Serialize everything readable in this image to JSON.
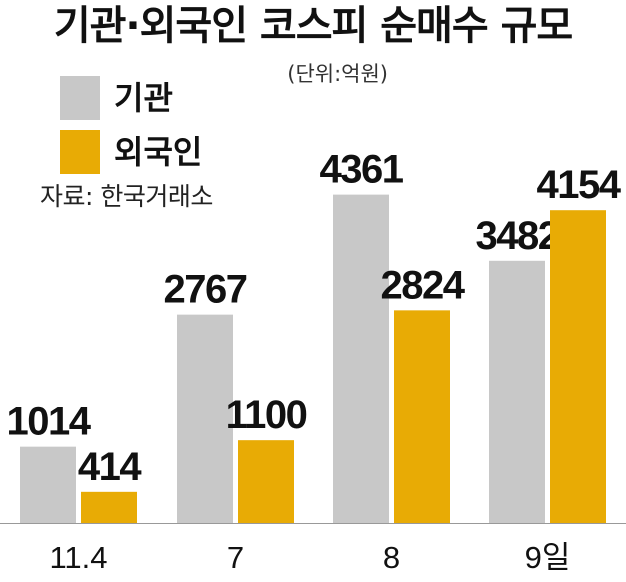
{
  "title": "기관·외국인 코스피 순매수 규모",
  "unit": "(단위:억원)",
  "source": "자료: 한국거래소",
  "colors": {
    "institution": "#c8c8c8",
    "foreign": "#e8ab05",
    "axis": "#999999"
  },
  "legend": [
    {
      "label": "기관",
      "color": "#c8c8c8"
    },
    {
      "label": "외국인",
      "color": "#e8ab05"
    }
  ],
  "chart_data": {
    "type": "bar",
    "title": "기관·외국인 코스피 순매수 규모",
    "categories": [
      "11.4",
      "7",
      "8",
      "9일"
    ],
    "series": [
      {
        "name": "기관",
        "values": [
          1014,
          2767,
          4361,
          3482
        ]
      },
      {
        "name": "외국인",
        "values": [
          414,
          1100,
          2824,
          4154
        ]
      }
    ],
    "xlabel": "",
    "ylabel": "",
    "ylim": [
      0,
      5000
    ],
    "grid": false,
    "legend_position": "top-left",
    "data_labels": true
  }
}
